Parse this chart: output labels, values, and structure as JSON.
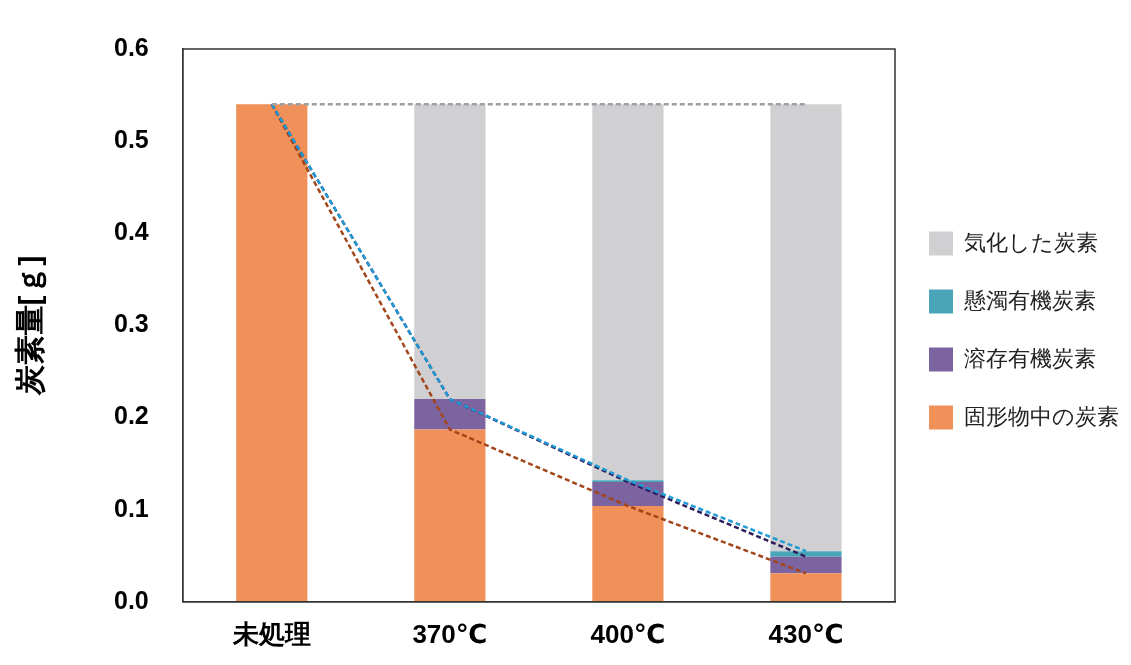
{
  "chart_data": {
    "type": "bar",
    "stacked": true,
    "ylabel": "炭素量[ｇ]",
    "categories": [
      "未処理",
      "370℃",
      "400℃",
      "430℃"
    ],
    "series": [
      {
        "name": "固形物中の炭素",
        "color": "#f0915a",
        "values": [
          0.54,
          0.187,
          0.104,
          0.031
        ]
      },
      {
        "name": "溶存有機炭素",
        "color": "#7b64a0",
        "values": [
          null,
          0.033,
          0.026,
          0.018
        ]
      },
      {
        "name": "懸濁有機炭素",
        "color": "#4ba5b9",
        "values": [
          null,
          0,
          0.002,
          0.006
        ]
      },
      {
        "name": "気化した炭素",
        "color": "#d0d0d2",
        "values": [
          null,
          0.32,
          0.408,
          0.485
        ]
      },
      {
        "type": "line",
        "color": "#a3451a",
        "values": [
          0.54,
          0.187,
          0.104,
          0.031
        ]
      },
      {
        "type": "line",
        "color": "#2e1c5c",
        "values": [
          0.54,
          0.22,
          0.13,
          0.049
        ]
      },
      {
        "type": "line",
        "color": "#1f9bd6",
        "values": [
          0.54,
          0.22,
          0.132,
          0.055
        ]
      },
      {
        "type": "line",
        "color": "#a0a0a4",
        "values": [
          0.54,
          0.54,
          0.54,
          0.54
        ]
      }
    ],
    "ylim": [
      0,
      0.6
    ],
    "yticks": [
      {
        "value": 0,
        "label": "0.0"
      },
      0.1,
      0.2,
      0.3,
      0.4,
      0.5,
      0.6
    ],
    "grid": false,
    "legend": "right",
    "line_style": "dashed",
    "marker": "none"
  }
}
